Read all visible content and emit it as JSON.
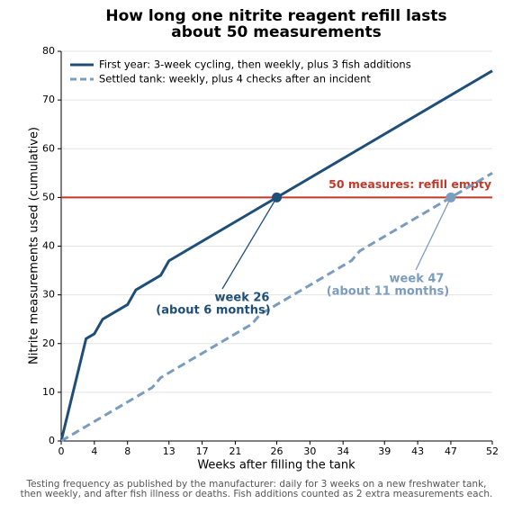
{
  "chart_data": {
    "type": "line",
    "title": [
      "How long one nitrite reagent refill lasts",
      "about 50 measurements"
    ],
    "xlabel": "Weeks after filling the tank",
    "ylabel": "Nitrite measurements used (cumulative)",
    "xlim": [
      0,
      52
    ],
    "ylim": [
      0,
      80
    ],
    "xticks": [
      0,
      4,
      8,
      13,
      17,
      21,
      26,
      30,
      34,
      39,
      43,
      47,
      52
    ],
    "yticks": [
      0,
      10,
      20,
      30,
      40,
      50,
      60,
      70,
      80
    ],
    "grid": true,
    "legend": "upper left",
    "series": [
      {
        "name": "First year: 3-week cycling, then weekly, plus 3 fish additions",
        "color": "#1f4e79",
        "dash": false,
        "x": [
          0,
          3,
          4,
          5,
          8,
          9,
          12,
          13,
          52
        ],
        "values": [
          0,
          21,
          22,
          25,
          28,
          31,
          34,
          37,
          76
        ]
      },
      {
        "name": "Settled tank: weekly, plus 4 checks after an incident",
        "color": "#7b9cbe",
        "dash": true,
        "x": [
          0,
          11,
          12,
          23,
          24,
          35,
          36,
          47,
          52
        ],
        "values": [
          0,
          11,
          13,
          24,
          26,
          37,
          39,
          50,
          55
        ]
      }
    ],
    "hline": {
      "value": 50,
      "label": "50 measures: refill empty",
      "color": "#c0392b"
    },
    "annotations": [
      {
        "text": [
          "week 26",
          "(about 6 months)"
        ],
        "x": 26,
        "y": 50,
        "color": "#1f4e79"
      },
      {
        "text": [
          "week 47",
          "(about 11 months)"
        ],
        "x": 47,
        "y": 50,
        "color": "#7b9cbe"
      }
    ],
    "footnote": [
      "Testing frequency as published by the manufacturer: daily for 3 weeks on a new freshwater tank,",
      "then weekly, and after fish illness or deaths. Fish additions counted as 2 extra measurements each."
    ]
  }
}
